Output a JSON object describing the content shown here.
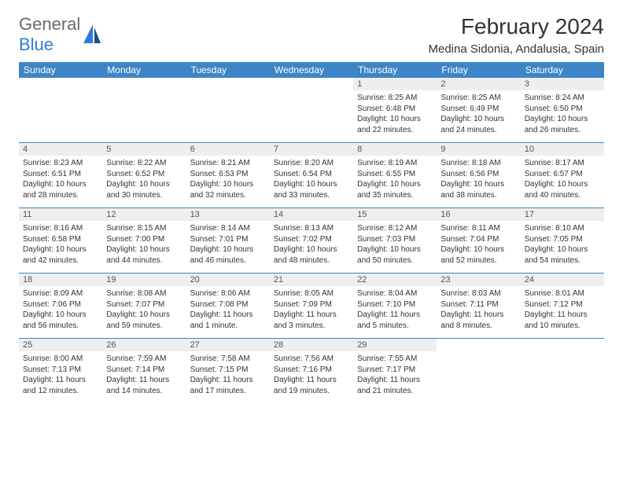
{
  "brand": {
    "text1": "General",
    "text2": "Blue"
  },
  "title": "February 2024",
  "location": "Medina Sidonia, Andalusia, Spain",
  "accent_color": "#3d85c6",
  "day_names": [
    "Sunday",
    "Monday",
    "Tuesday",
    "Wednesday",
    "Thursday",
    "Friday",
    "Saturday"
  ],
  "weeks": [
    [
      {
        "empty": true
      },
      {
        "empty": true
      },
      {
        "empty": true
      },
      {
        "empty": true
      },
      {
        "day": "1",
        "sunrise": "Sunrise: 8:25 AM",
        "sunset": "Sunset: 6:48 PM",
        "daylight": "Daylight: 10 hours and 22 minutes."
      },
      {
        "day": "2",
        "sunrise": "Sunrise: 8:25 AM",
        "sunset": "Sunset: 6:49 PM",
        "daylight": "Daylight: 10 hours and 24 minutes."
      },
      {
        "day": "3",
        "sunrise": "Sunrise: 8:24 AM",
        "sunset": "Sunset: 6:50 PM",
        "daylight": "Daylight: 10 hours and 26 minutes."
      }
    ],
    [
      {
        "day": "4",
        "sunrise": "Sunrise: 8:23 AM",
        "sunset": "Sunset: 6:51 PM",
        "daylight": "Daylight: 10 hours and 28 minutes."
      },
      {
        "day": "5",
        "sunrise": "Sunrise: 8:22 AM",
        "sunset": "Sunset: 6:52 PM",
        "daylight": "Daylight: 10 hours and 30 minutes."
      },
      {
        "day": "6",
        "sunrise": "Sunrise: 8:21 AM",
        "sunset": "Sunset: 6:53 PM",
        "daylight": "Daylight: 10 hours and 32 minutes."
      },
      {
        "day": "7",
        "sunrise": "Sunrise: 8:20 AM",
        "sunset": "Sunset: 6:54 PM",
        "daylight": "Daylight: 10 hours and 33 minutes."
      },
      {
        "day": "8",
        "sunrise": "Sunrise: 8:19 AM",
        "sunset": "Sunset: 6:55 PM",
        "daylight": "Daylight: 10 hours and 35 minutes."
      },
      {
        "day": "9",
        "sunrise": "Sunrise: 8:18 AM",
        "sunset": "Sunset: 6:56 PM",
        "daylight": "Daylight: 10 hours and 38 minutes."
      },
      {
        "day": "10",
        "sunrise": "Sunrise: 8:17 AM",
        "sunset": "Sunset: 6:57 PM",
        "daylight": "Daylight: 10 hours and 40 minutes."
      }
    ],
    [
      {
        "day": "11",
        "sunrise": "Sunrise: 8:16 AM",
        "sunset": "Sunset: 6:58 PM",
        "daylight": "Daylight: 10 hours and 42 minutes."
      },
      {
        "day": "12",
        "sunrise": "Sunrise: 8:15 AM",
        "sunset": "Sunset: 7:00 PM",
        "daylight": "Daylight: 10 hours and 44 minutes."
      },
      {
        "day": "13",
        "sunrise": "Sunrise: 8:14 AM",
        "sunset": "Sunset: 7:01 PM",
        "daylight": "Daylight: 10 hours and 46 minutes."
      },
      {
        "day": "14",
        "sunrise": "Sunrise: 8:13 AM",
        "sunset": "Sunset: 7:02 PM",
        "daylight": "Daylight: 10 hours and 48 minutes."
      },
      {
        "day": "15",
        "sunrise": "Sunrise: 8:12 AM",
        "sunset": "Sunset: 7:03 PM",
        "daylight": "Daylight: 10 hours and 50 minutes."
      },
      {
        "day": "16",
        "sunrise": "Sunrise: 8:11 AM",
        "sunset": "Sunset: 7:04 PM",
        "daylight": "Daylight: 10 hours and 52 minutes."
      },
      {
        "day": "17",
        "sunrise": "Sunrise: 8:10 AM",
        "sunset": "Sunset: 7:05 PM",
        "daylight": "Daylight: 10 hours and 54 minutes."
      }
    ],
    [
      {
        "day": "18",
        "sunrise": "Sunrise: 8:09 AM",
        "sunset": "Sunset: 7:06 PM",
        "daylight": "Daylight: 10 hours and 56 minutes."
      },
      {
        "day": "19",
        "sunrise": "Sunrise: 8:08 AM",
        "sunset": "Sunset: 7:07 PM",
        "daylight": "Daylight: 10 hours and 59 minutes."
      },
      {
        "day": "20",
        "sunrise": "Sunrise: 8:06 AM",
        "sunset": "Sunset: 7:08 PM",
        "daylight": "Daylight: 11 hours and 1 minute."
      },
      {
        "day": "21",
        "sunrise": "Sunrise: 8:05 AM",
        "sunset": "Sunset: 7:09 PM",
        "daylight": "Daylight: 11 hours and 3 minutes."
      },
      {
        "day": "22",
        "sunrise": "Sunrise: 8:04 AM",
        "sunset": "Sunset: 7:10 PM",
        "daylight": "Daylight: 11 hours and 5 minutes."
      },
      {
        "day": "23",
        "sunrise": "Sunrise: 8:03 AM",
        "sunset": "Sunset: 7:11 PM",
        "daylight": "Daylight: 11 hours and 8 minutes."
      },
      {
        "day": "24",
        "sunrise": "Sunrise: 8:01 AM",
        "sunset": "Sunset: 7:12 PM",
        "daylight": "Daylight: 11 hours and 10 minutes."
      }
    ],
    [
      {
        "day": "25",
        "sunrise": "Sunrise: 8:00 AM",
        "sunset": "Sunset: 7:13 PM",
        "daylight": "Daylight: 11 hours and 12 minutes."
      },
      {
        "day": "26",
        "sunrise": "Sunrise: 7:59 AM",
        "sunset": "Sunset: 7:14 PM",
        "daylight": "Daylight: 11 hours and 14 minutes."
      },
      {
        "day": "27",
        "sunrise": "Sunrise: 7:58 AM",
        "sunset": "Sunset: 7:15 PM",
        "daylight": "Daylight: 11 hours and 17 minutes."
      },
      {
        "day": "28",
        "sunrise": "Sunrise: 7:56 AM",
        "sunset": "Sunset: 7:16 PM",
        "daylight": "Daylight: 11 hours and 19 minutes."
      },
      {
        "day": "29",
        "sunrise": "Sunrise: 7:55 AM",
        "sunset": "Sunset: 7:17 PM",
        "daylight": "Daylight: 11 hours and 21 minutes."
      },
      {
        "empty": true
      },
      {
        "empty": true
      }
    ]
  ]
}
